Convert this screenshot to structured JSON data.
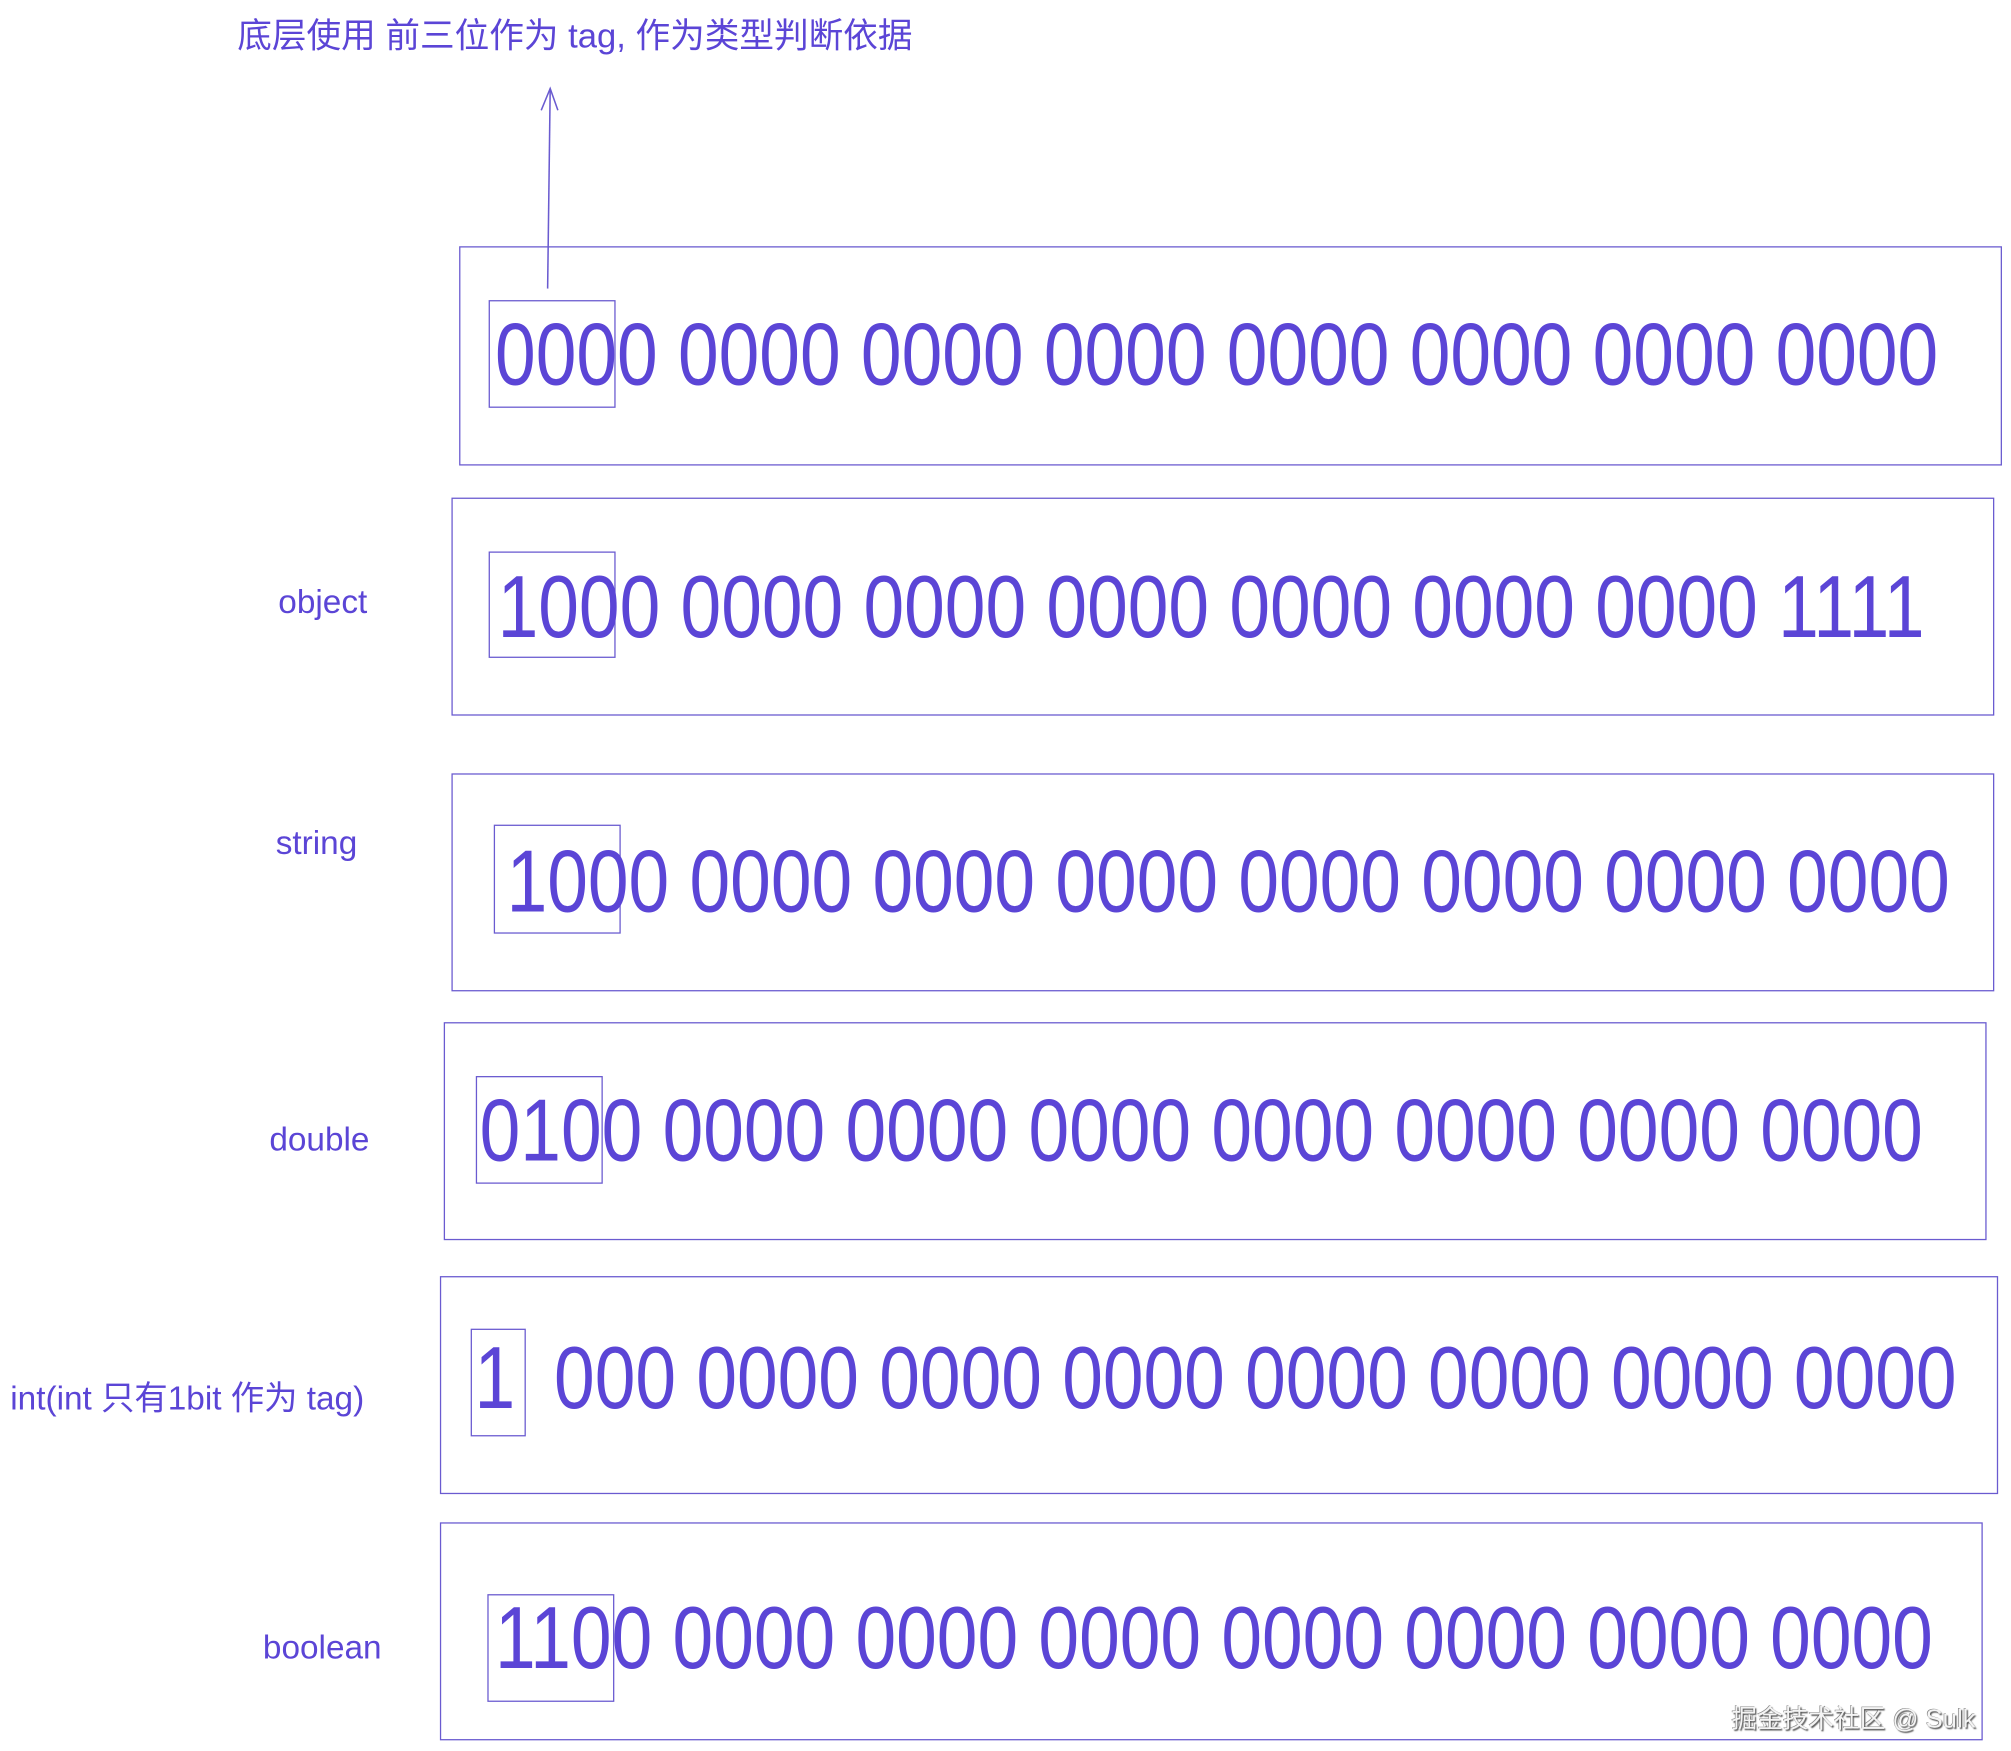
{
  "title": "底层使用 前三位作为 tag, 作为类型判断依据",
  "colors": {
    "text": "#5b45d6",
    "border": "#6a5bd0"
  },
  "rows": [
    {
      "label": "",
      "tag_bits": "0000",
      "bits": "0000 0000 0000 0000 0000 0000 0000 0000"
    },
    {
      "label": "object",
      "bits": "1000 0000 0000 0000 0000 0000 0000 1111"
    },
    {
      "label": "string",
      "bits": "1000 0000 0000 0000 0000 0000 0000 0000"
    },
    {
      "label": "double",
      "bits": "0100 0000 0000 0000 0000 0000 0000 0000"
    },
    {
      "label": "int(int 只有1bit 作为 tag)",
      "tag": "1",
      "bits": "000 0000 0000 0000 0000 0000 0000 0000"
    },
    {
      "label": "boolean",
      "bits": "1100 0000 0000 0000 0000 0000 0000 0000"
    }
  ],
  "watermark": "掘金技术社区 @ Sulk"
}
